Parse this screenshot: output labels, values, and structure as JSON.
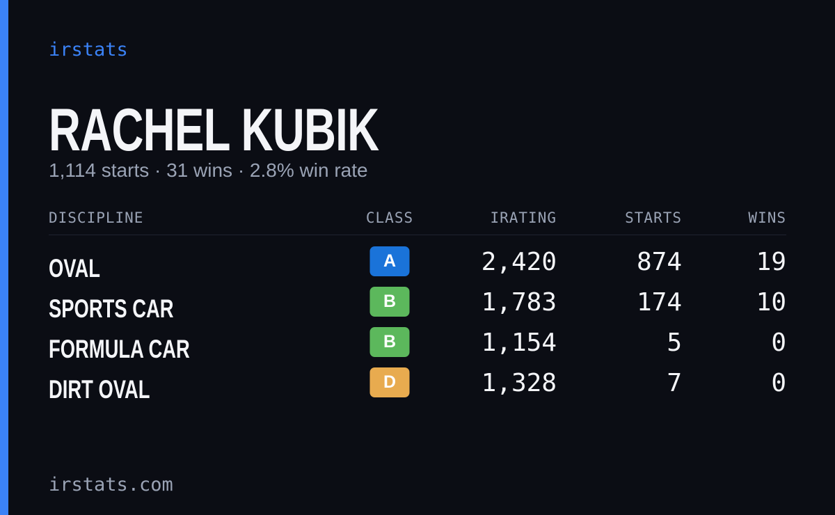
{
  "brand": "irstats",
  "name": "RACHEL KUBIK",
  "summary": "1,114 starts · 31 wins · 2.8% win rate",
  "table": {
    "headers": [
      "DISCIPLINE",
      "CLASS",
      "IRATING",
      "STARTS",
      "WINS"
    ],
    "rows": [
      {
        "discipline": "OVAL",
        "class": "A",
        "class_color": "#1a73d9",
        "irating": "2,420",
        "starts": "874",
        "wins": "19"
      },
      {
        "discipline": "SPORTS CAR",
        "class": "B",
        "class_color": "#5cb85c",
        "irating": "1,783",
        "starts": "174",
        "wins": "10"
      },
      {
        "discipline": "FORMULA CAR",
        "class": "B",
        "class_color": "#5cb85c",
        "irating": "1,154",
        "starts": "5",
        "wins": "0"
      },
      {
        "discipline": "DIRT OVAL",
        "class": "D",
        "class_color": "#e8ab4f",
        "irating": "1,328",
        "starts": "7",
        "wins": "0"
      }
    ]
  },
  "footer": "irstats.com"
}
